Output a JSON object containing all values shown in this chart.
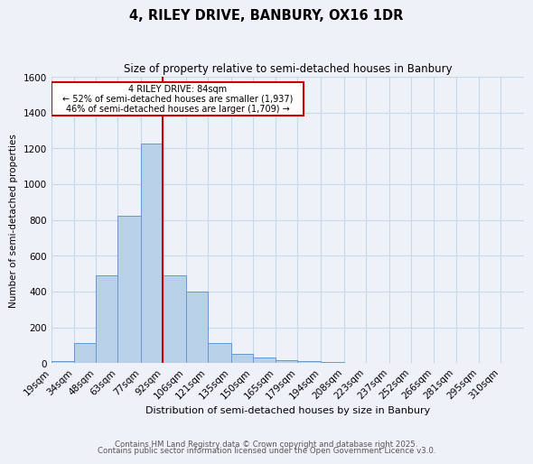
{
  "title1": "4, RILEY DRIVE, BANBURY, OX16 1DR",
  "title2": "Size of property relative to semi-detached houses in Banbury",
  "xlabel": "Distribution of semi-detached houses by size in Banbury",
  "ylabel": "Number of semi-detached properties",
  "categories": [
    "19sqm",
    "34sqm",
    "48sqm",
    "63sqm",
    "77sqm",
    "92sqm",
    "106sqm",
    "121sqm",
    "135sqm",
    "150sqm",
    "165sqm",
    "179sqm",
    "194sqm",
    "208sqm",
    "223sqm",
    "237sqm",
    "252sqm",
    "266sqm",
    "281sqm",
    "295sqm",
    "310sqm"
  ],
  "bin_edges": [
    12,
    27,
    41,
    55,
    70,
    84,
    99,
    113,
    128,
    142,
    157,
    171,
    186,
    201,
    215,
    230,
    244,
    259,
    273,
    288,
    302,
    317
  ],
  "values": [
    10,
    110,
    490,
    825,
    1225,
    490,
    400,
    110,
    50,
    30,
    15,
    10,
    5,
    2,
    1,
    0,
    0,
    0,
    0,
    0,
    0
  ],
  "bar_color": "#b8d0e8",
  "bar_edge_color": "#6699cc",
  "vline_x": 84,
  "vline_color": "#cc0000",
  "ylim": [
    0,
    1600
  ],
  "yticks": [
    0,
    200,
    400,
    600,
    800,
    1000,
    1200,
    1400,
    1600
  ],
  "property_label": "4 RILEY DRIVE: 84sqm",
  "smaller_line": "← 52% of semi-detached houses are smaller (1,937)",
  "larger_line": "46% of semi-detached houses are larger (1,709) →",
  "annotation_box_color": "#cc0000",
  "grid_color": "#c8d8ec",
  "bg_color": "#eef2f8",
  "footer1": "Contains HM Land Registry data © Crown copyright and database right 2025.",
  "footer2": "Contains public sector information licensed under the Open Government Licence v3.0."
}
